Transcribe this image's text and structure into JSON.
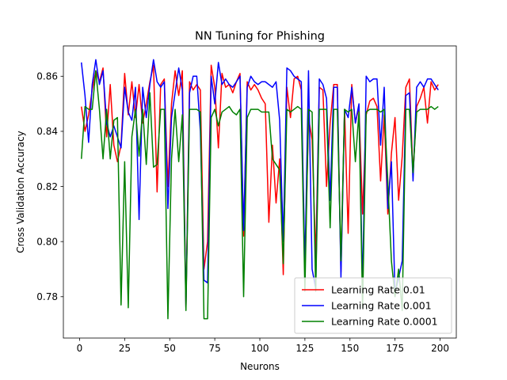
{
  "chart_data": {
    "type": "line",
    "title": "NN Tuning for Phishing",
    "xlabel": "Neurons",
    "ylabel": "Cross Validation Accuracy",
    "xlim": [
      -9,
      209
    ],
    "ylim": [
      0.765,
      0.871
    ],
    "xticks": [
      0,
      25,
      50,
      75,
      100,
      125,
      150,
      175,
      200
    ],
    "yticks": [
      0.78,
      0.8,
      0.82,
      0.84,
      0.86
    ],
    "ytick_labels": [
      "0.78",
      "0.80",
      "0.82",
      "0.84",
      "0.86"
    ],
    "grid": false,
    "legend_position": "lower-right",
    "x": [
      1,
      3,
      5,
      7,
      9,
      11,
      13,
      15,
      17,
      19,
      21,
      23,
      25,
      27,
      29,
      31,
      33,
      35,
      37,
      39,
      41,
      43,
      45,
      47,
      49,
      51,
      53,
      55,
      57,
      59,
      61,
      63,
      65,
      67,
      69,
      71,
      73,
      75,
      77,
      79,
      81,
      83,
      85,
      87,
      89,
      91,
      93,
      95,
      97,
      99,
      101,
      103,
      105,
      107,
      109,
      111,
      113,
      115,
      117,
      119,
      121,
      123,
      125,
      127,
      129,
      131,
      133,
      135,
      137,
      139,
      141,
      143,
      145,
      147,
      149,
      151,
      153,
      155,
      157,
      159,
      161,
      163,
      165,
      167,
      169,
      171,
      173,
      175,
      177,
      179,
      181,
      183,
      185,
      187,
      189,
      191,
      193,
      195,
      197,
      199
    ],
    "series": [
      {
        "name": "Learning Rate 0.01",
        "color": "#ff0000",
        "values": [
          0.849,
          0.84,
          0.846,
          0.855,
          0.862,
          0.858,
          0.863,
          0.838,
          0.857,
          0.835,
          0.829,
          0.835,
          0.861,
          0.846,
          0.858,
          0.845,
          0.857,
          0.843,
          0.85,
          0.858,
          0.864,
          0.818,
          0.857,
          0.859,
          0.82,
          0.85,
          0.862,
          0.853,
          0.862,
          0.776,
          0.858,
          0.855,
          0.857,
          0.855,
          0.79,
          0.8,
          0.864,
          0.856,
          0.834,
          0.861,
          0.856,
          0.857,
          0.854,
          0.858,
          0.861,
          0.802,
          0.858,
          0.855,
          0.857,
          0.855,
          0.852,
          0.85,
          0.807,
          0.835,
          0.814,
          0.83,
          0.788,
          0.856,
          0.845,
          0.859,
          0.86,
          0.855,
          0.788,
          0.845,
          0.837,
          0.794,
          0.856,
          0.855,
          0.82,
          0.843,
          0.857,
          0.857,
          0.789,
          0.848,
          0.803,
          0.857,
          0.843,
          0.849,
          0.81,
          0.846,
          0.851,
          0.852,
          0.849,
          0.822,
          0.846,
          0.81,
          0.832,
          0.845,
          0.815,
          0.831,
          0.856,
          0.859,
          0.824,
          0.849,
          0.852,
          0.856,
          0.843,
          0.858,
          0.855,
          0.857
        ]
      },
      {
        "name": "Learning Rate 0.001",
        "color": "#0000ff",
        "values": [
          0.865,
          0.853,
          0.836,
          0.857,
          0.866,
          0.857,
          0.862,
          0.843,
          0.838,
          0.842,
          0.838,
          0.834,
          0.856,
          0.847,
          0.844,
          0.856,
          0.808,
          0.856,
          0.845,
          0.857,
          0.866,
          0.858,
          0.856,
          0.858,
          0.812,
          0.845,
          0.854,
          0.863,
          0.855,
          0.776,
          0.854,
          0.86,
          0.86,
          0.84,
          0.786,
          0.785,
          0.86,
          0.85,
          0.865,
          0.857,
          0.859,
          0.857,
          0.856,
          0.858,
          0.86,
          0.804,
          0.856,
          0.86,
          0.858,
          0.857,
          0.858,
          0.858,
          0.857,
          0.856,
          0.858,
          0.844,
          0.8,
          0.863,
          0.862,
          0.86,
          0.859,
          0.858,
          0.79,
          0.862,
          0.79,
          0.783,
          0.859,
          0.857,
          0.852,
          0.815,
          0.856,
          0.856,
          0.787,
          0.848,
          0.845,
          0.856,
          0.843,
          0.85,
          0.783,
          0.86,
          0.858,
          0.859,
          0.859,
          0.835,
          0.856,
          0.812,
          0.829,
          0.781,
          0.787,
          0.793,
          0.853,
          0.854,
          0.822,
          0.856,
          0.858,
          0.856,
          0.859,
          0.859,
          0.857,
          0.855
        ]
      },
      {
        "name": "Learning Rate 0.0001",
        "color": "#008000",
        "values": [
          0.83,
          0.849,
          0.848,
          0.848,
          0.862,
          0.848,
          0.83,
          0.848,
          0.83,
          0.844,
          0.845,
          0.777,
          0.829,
          0.776,
          0.838,
          0.848,
          0.831,
          0.848,
          0.828,
          0.854,
          0.827,
          0.828,
          0.848,
          0.848,
          0.772,
          0.83,
          0.848,
          0.829,
          0.846,
          0.775,
          0.848,
          0.848,
          0.848,
          0.847,
          0.772,
          0.772,
          0.845,
          0.848,
          0.842,
          0.847,
          0.848,
          0.849,
          0.847,
          0.846,
          0.848,
          0.78,
          0.845,
          0.848,
          0.848,
          0.848,
          0.847,
          0.847,
          0.847,
          0.83,
          0.828,
          0.826,
          0.792,
          0.848,
          0.847,
          0.848,
          0.849,
          0.848,
          0.782,
          0.848,
          0.847,
          0.782,
          0.848,
          0.848,
          0.848,
          0.805,
          0.848,
          0.848,
          0.793,
          0.848,
          0.847,
          0.848,
          0.829,
          0.847,
          0.776,
          0.847,
          0.848,
          0.848,
          0.848,
          0.847,
          0.848,
          0.822,
          0.793,
          0.78,
          0.79,
          0.775,
          0.848,
          0.848,
          0.825,
          0.847,
          0.848,
          0.848,
          0.848,
          0.849,
          0.848,
          0.849
        ]
      }
    ]
  }
}
